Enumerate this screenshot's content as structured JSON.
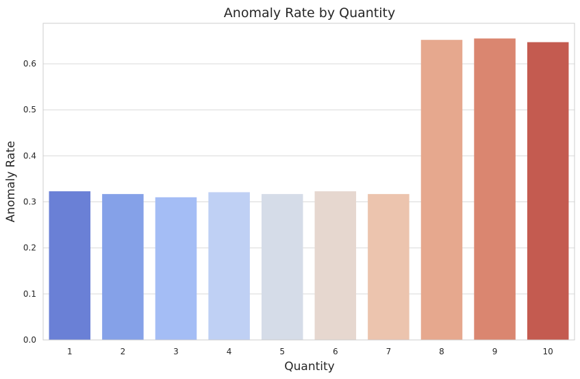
{
  "chart_data": {
    "type": "bar",
    "title": "Anomaly Rate by Quantity",
    "xlabel": "Quantity",
    "ylabel": "Anomaly Rate",
    "categories": [
      "1",
      "2",
      "3",
      "4",
      "5",
      "6",
      "7",
      "8",
      "9",
      "10"
    ],
    "values": [
      0.323,
      0.317,
      0.31,
      0.321,
      0.317,
      0.323,
      0.317,
      0.652,
      0.655,
      0.647
    ],
    "colors": [
      "#6a80d6",
      "#85a1e8",
      "#a4bdf5",
      "#bfd0f4",
      "#d5dce8",
      "#e6d7cf",
      "#ecc4ae",
      "#e6a88e",
      "#da8670",
      "#c45b50"
    ],
    "yticks": [
      "0.0",
      "0.1",
      "0.2",
      "0.3",
      "0.4",
      "0.5",
      "0.6"
    ],
    "ylim": [
      0,
      0.688
    ],
    "grid": "horizontal",
    "legend": "none"
  }
}
